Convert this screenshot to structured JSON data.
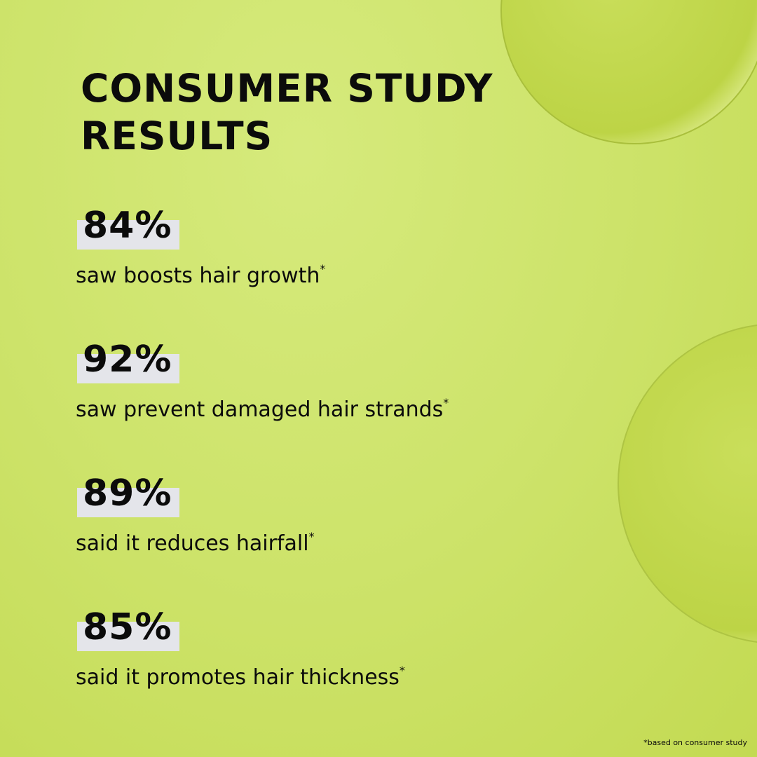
{
  "header": {
    "title_lines": [
      "CONSUMER STUDY",
      "RESULTS"
    ]
  },
  "stats": [
    {
      "value": "84%",
      "description": "saw boosts hair growth",
      "marker": "*"
    },
    {
      "value": "92%",
      "description": "saw prevent damaged hair strands",
      "marker": "*"
    },
    {
      "value": "89%",
      "description": "said it reduces hairfall",
      "marker": "*"
    },
    {
      "value": "85%",
      "description": "said it promotes hair thickness",
      "marker": "*"
    }
  ],
  "footnote": "*based on consumer study"
}
